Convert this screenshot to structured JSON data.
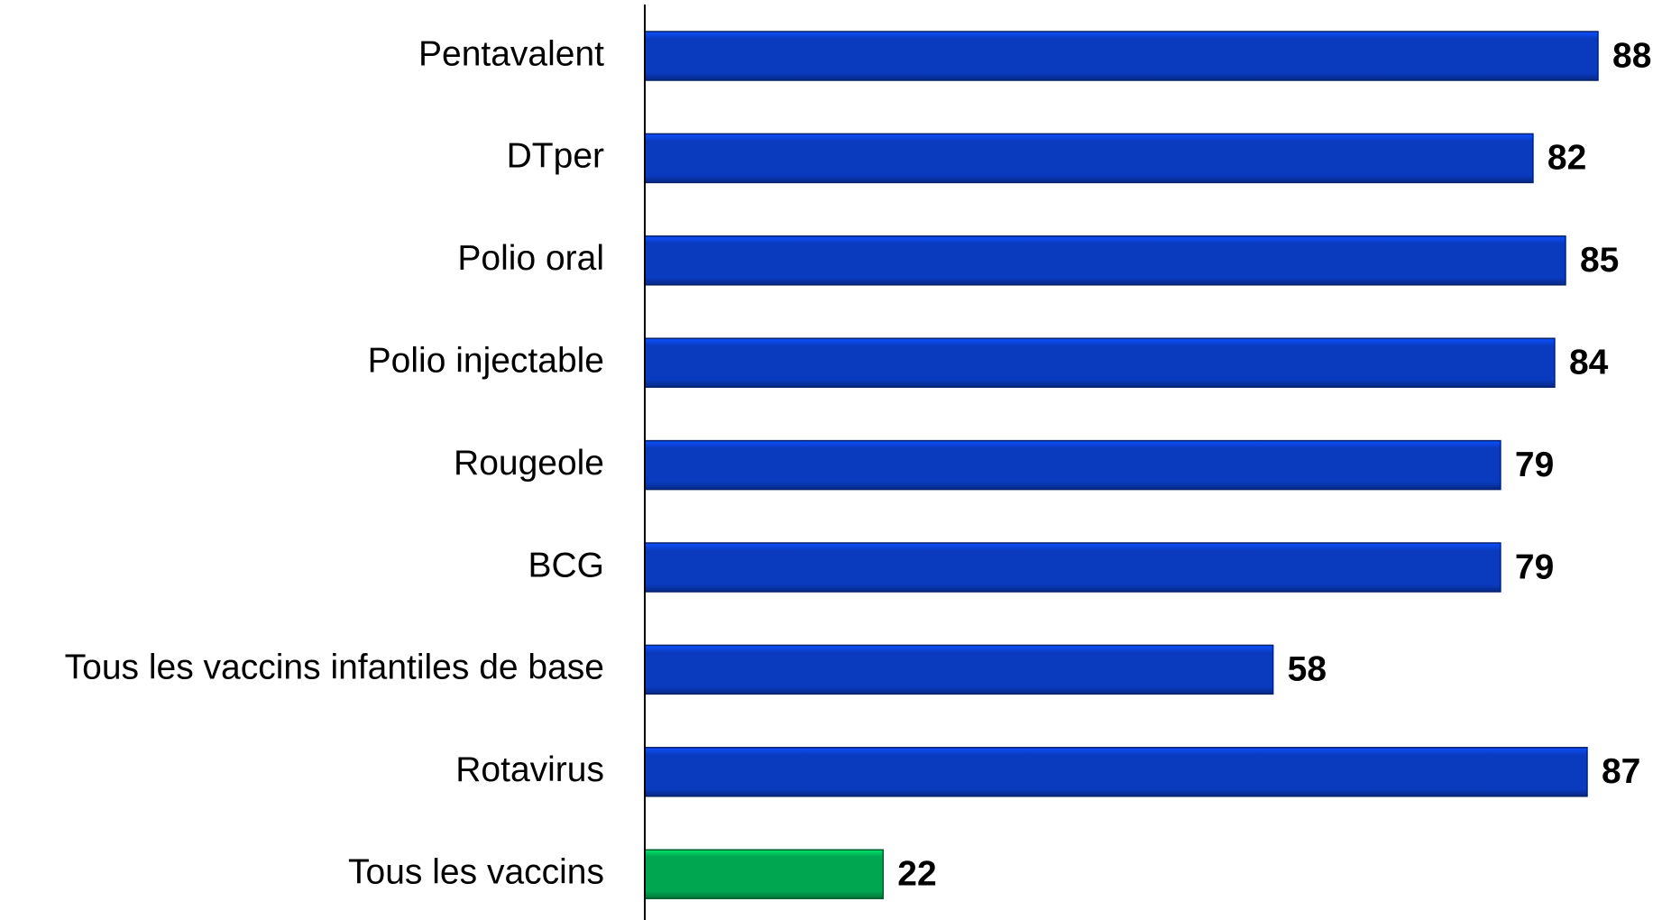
{
  "chart_data": {
    "type": "bar",
    "orientation": "horizontal",
    "categories": [
      "Pentavalent",
      "DTper",
      "Polio oral",
      "Polio injectable",
      "Rougeole",
      "BCG",
      "Tous les vaccins infantiles de base",
      "Rotavirus",
      "Tous les vaccins"
    ],
    "values": [
      88,
      82,
      85,
      84,
      79,
      79,
      58,
      87,
      22
    ],
    "colors": [
      "#0a3bbf",
      "#0a3bbf",
      "#0a3bbf",
      "#0a3bbf",
      "#0a3bbf",
      "#0a3bbf",
      "#0a3bbf",
      "#0a3bbf",
      "#00a650"
    ],
    "grid": false
  }
}
